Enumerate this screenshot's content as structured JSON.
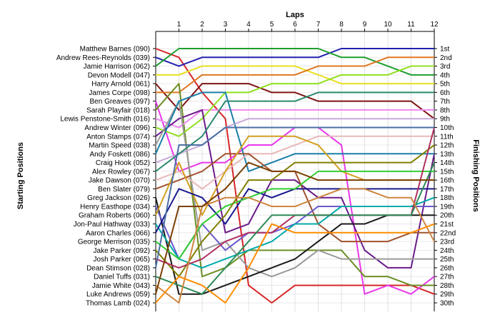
{
  "chart_data": {
    "type": "line",
    "title": "Laps",
    "xlabel": "Laps",
    "ylabel_left": "Starting Positions",
    "ylabel_right": "Finishing Positions",
    "x": [
      0,
      1,
      2,
      3,
      4,
      5,
      6,
      7,
      8,
      9,
      10,
      11,
      12
    ],
    "lap_tick_labels": [
      "1",
      "2",
      "3",
      "4",
      "5",
      "6",
      "7",
      "8",
      "9",
      "10",
      "11",
      "12"
    ],
    "ylim": [
      1,
      30
    ],
    "grid": true,
    "starting_labels": [
      "Matthew Barnes (090)",
      "Andrew Rees-Reynolds (039)",
      "Jamie Harrison (062)",
      "Devon Modell (047)",
      "Harry Arnold (061)",
      "James Corpe (098)",
      "Ben Greaves (097)",
      "Sarah Playfair (018)",
      "Lewis Penstone-Smith (016)",
      "Andrew Winter (096)",
      "Anton Stamps (074)",
      "Martin Speed (038)",
      "Andy Foskett (086)",
      "Craig Hook (052)",
      "Alex Rowley (067)",
      "Jake Dawson (070)",
      "Ben Slater (079)",
      "Greg Jackson (026)",
      "Henry Easthope (034)",
      "Graham Roberts (060)",
      "Jon-Paul Hathway (033)",
      "Aaron Charles (066)",
      "George Merrison (035)",
      "Jake Parker (092)",
      "Josh Parker (065)",
      "Dean Stimson (028)",
      "Daniel Tuffs (031)",
      "Jamie White (043)",
      "Luke Andrews (059)",
      "Thomas Lamb (024)"
    ],
    "finishing_labels": [
      "1st",
      "2nd",
      "3rd",
      "4th",
      "5th",
      "6th",
      "7th",
      "8th",
      "9th",
      "10th",
      "11th",
      "12th",
      "13th",
      "14th",
      "15th",
      "16th",
      "17th",
      "18th",
      "19th",
      "20th",
      "21st",
      "22nd",
      "23rd",
      "24th",
      "25th",
      "26th",
      "27th",
      "28th",
      "29th",
      "30th"
    ],
    "series": [
      {
        "color": "#d62728",
        "values": [
          1,
          2,
          6,
          9,
          28,
          30,
          28,
          28,
          28,
          28,
          28,
          28,
          29
        ]
      },
      {
        "color": "#2020b0",
        "values": [
          2,
          3,
          2,
          2,
          2,
          2,
          2,
          2,
          1,
          1,
          1,
          1,
          1
        ]
      },
      {
        "color": "#1e9e2e",
        "values": [
          3,
          1,
          1,
          1,
          1,
          1,
          1,
          1,
          2,
          2,
          3,
          4,
          4
        ]
      },
      {
        "color": "#e8e020",
        "values": [
          4,
          4,
          3,
          3,
          3,
          3,
          3,
          4,
          5,
          5,
          5,
          5,
          5
        ]
      },
      {
        "color": "#7f1515",
        "values": [
          5,
          8,
          5,
          5,
          5,
          6,
          6,
          7,
          7,
          7,
          7,
          7,
          9
        ]
      },
      {
        "color": "#e07820",
        "values": [
          6,
          6,
          4,
          4,
          4,
          4,
          4,
          3,
          3,
          3,
          2,
          2,
          2
        ]
      },
      {
        "color": "#e838e8",
        "values": [
          7,
          15,
          14,
          14,
          12,
          12,
          10,
          10,
          12,
          29,
          28,
          29,
          27
        ]
      },
      {
        "color": "#6b8e23",
        "values": [
          8,
          5,
          27,
          26,
          24,
          24,
          24,
          24,
          24,
          27,
          27,
          28,
          28
        ]
      },
      {
        "color": "#ee88ee",
        "values": [
          9,
          10,
          8,
          8,
          8,
          8,
          8,
          8,
          8,
          8,
          8,
          8,
          8
        ]
      },
      {
        "color": "#90e020",
        "values": [
          10,
          11,
          9,
          6,
          6,
          5,
          5,
          5,
          4,
          4,
          4,
          3,
          3
        ]
      },
      {
        "color": "#6a1b8a",
        "values": [
          11,
          9,
          8,
          22,
          21,
          16,
          16,
          18,
          18,
          24,
          26,
          26,
          13
        ]
      },
      {
        "color": "#9a9a9a",
        "values": [
          12,
          7,
          24,
          23,
          26,
          27,
          26,
          24,
          25,
          25,
          25,
          25,
          25
        ]
      },
      {
        "color": "#1a7fa8",
        "values": [
          13,
          7,
          6,
          6,
          15,
          14,
          13,
          13,
          13,
          13,
          13,
          13,
          13
        ]
      },
      {
        "color": "#c8a8d8",
        "values": [
          14,
          13,
          12,
          10,
          9,
          9,
          9,
          9,
          9,
          9,
          9,
          9,
          9
        ]
      },
      {
        "color": "#2a8a6e",
        "values": [
          15,
          13,
          11,
          7,
          7,
          7,
          7,
          6,
          6,
          6,
          6,
          6,
          6
        ]
      },
      {
        "color": "#e8b8b8",
        "values": [
          16,
          15,
          17,
          15,
          13,
          13,
          12,
          11,
          11,
          11,
          11,
          11,
          11
        ]
      },
      {
        "color": "#a0522d",
        "values": [
          17,
          16,
          15,
          13,
          13,
          15,
          15,
          21,
          23,
          23,
          23,
          22,
          22
        ]
      },
      {
        "color": "#1a1a1a",
        "values": [
          18,
          29,
          29,
          28,
          27,
          26,
          25,
          23,
          21,
          21,
          20,
          20,
          20
        ]
      },
      {
        "color": "#6a5acd",
        "values": [
          19,
          25,
          21,
          24,
          22,
          22,
          21,
          19,
          19,
          19,
          19,
          19,
          19
        ]
      },
      {
        "color": "#d2a020",
        "values": [
          20,
          14,
          20,
          15,
          11,
          11,
          11,
          12,
          15,
          16,
          16,
          16,
          16
        ]
      },
      {
        "color": "#00aaaa",
        "values": [
          21,
          25,
          26,
          25,
          24,
          23,
          21,
          21,
          19,
          19,
          19,
          19,
          18
        ]
      },
      {
        "color": "#1a1a8e",
        "values": [
          22,
          17,
          18,
          21,
          17,
          18,
          17,
          17,
          17,
          17,
          17,
          17,
          17
        ]
      },
      {
        "color": "#32cd32",
        "values": [
          23,
          25,
          21,
          19,
          18,
          17,
          17,
          15,
          15,
          15,
          15,
          15,
          15
        ]
      },
      {
        "color": "#808000",
        "values": [
          24,
          27,
          23,
          20,
          16,
          16,
          14,
          14,
          14,
          14,
          14,
          14,
          12
        ]
      },
      {
        "color": "#b03060",
        "values": [
          25,
          26,
          25,
          23,
          22,
          22,
          20,
          20,
          20,
          20,
          20,
          20,
          10
        ]
      },
      {
        "color": "#4a6fa5",
        "values": [
          26,
          12,
          12,
          10,
          10,
          10,
          10,
          10,
          10,
          10,
          10,
          10,
          10
        ]
      },
      {
        "color": "#2e8b57",
        "values": [
          27,
          28,
          29,
          26,
          23,
          20,
          20,
          20,
          20,
          20,
          20,
          20,
          14
        ]
      },
      {
        "color": "#cd853f",
        "values": [
          28,
          30,
          19,
          18,
          18,
          19,
          19,
          18,
          17,
          17,
          18,
          18,
          23
        ]
      },
      {
        "color": "#7b3f00",
        "values": [
          29,
          19,
          19,
          17,
          14,
          15,
          15,
          16,
          16,
          16,
          16,
          16,
          16
        ]
      },
      {
        "color": "#ff8c00",
        "values": [
          30,
          27,
          28,
          30,
          26,
          21,
          22,
          22,
          22,
          22,
          22,
          22,
          21
        ]
      }
    ]
  }
}
